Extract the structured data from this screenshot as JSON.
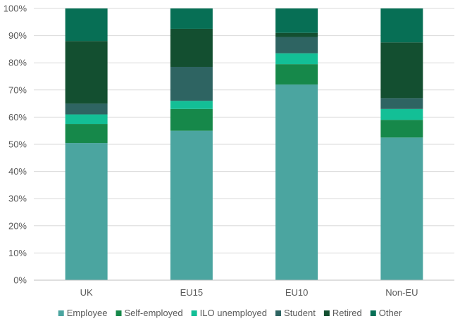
{
  "chart_data": {
    "type": "bar",
    "stacked": true,
    "percent": true,
    "categories": [
      "UK",
      "EU15",
      "EU10",
      "Non-EU"
    ],
    "y_ticks": [
      "0%",
      "10%",
      "20%",
      "30%",
      "40%",
      "50%",
      "60%",
      "70%",
      "80%",
      "90%",
      "100%"
    ],
    "ylim": [
      0,
      100
    ],
    "grid": true,
    "legend_position": "bottom",
    "series": [
      {
        "name": "Employee",
        "color": "#4BA5A0",
        "values": [
          50.5,
          55,
          72,
          52.5
        ]
      },
      {
        "name": "Self-employed",
        "color": "#16884A",
        "values": [
          7,
          8,
          7.5,
          6.5
        ]
      },
      {
        "name": "ILO unemployed",
        "color": "#13BF96",
        "values": [
          3.5,
          3,
          4,
          4
        ]
      },
      {
        "name": "Student",
        "color": "#2E6462",
        "values": [
          4,
          12.5,
          6,
          4
        ]
      },
      {
        "name": "Retired",
        "color": "#134F30",
        "values": [
          23,
          14,
          1.5,
          20.5
        ]
      },
      {
        "name": "Other",
        "color": "#076F55",
        "values": [
          12,
          7.5,
          9,
          12.5
        ]
      }
    ]
  }
}
